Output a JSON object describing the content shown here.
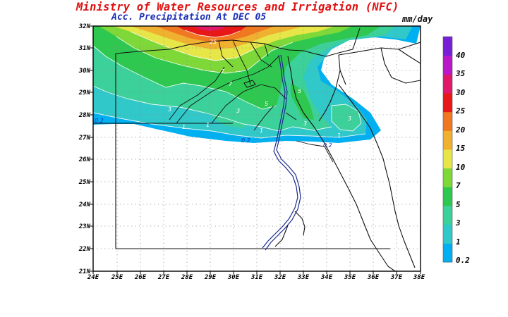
{
  "header": {
    "title": "Ministry of Water Resources and Irrigation (NFC)",
    "subtitle": "Acc. Precipitation  At DEC 05",
    "units": "mm/day"
  },
  "axes": {
    "lat_labels": [
      "21N",
      "22N",
      "23N",
      "24N",
      "25N",
      "26N",
      "27N",
      "28N",
      "29N",
      "30N",
      "31N",
      "32N"
    ],
    "lon_labels": [
      "24E",
      "25E",
      "26E",
      "27E",
      "28E",
      "29E",
      "30E",
      "31E",
      "32E",
      "33E",
      "34E",
      "35E",
      "36E",
      "37E",
      "38E"
    ],
    "lat_range": [
      21,
      32
    ],
    "lon_range": [
      24,
      38
    ]
  },
  "colorbar": {
    "levels": [
      "0.2",
      "1",
      "3",
      "5",
      "7",
      "10",
      "15",
      "20",
      "25",
      "30",
      "35",
      "40"
    ],
    "colors": [
      "#00b0f0",
      "#30c8c8",
      "#3cd09a",
      "#2ec850",
      "#7ed838",
      "#e6e648",
      "#f0b030",
      "#f07820",
      "#e81818",
      "#e0186a",
      "#b818c8",
      "#7820d8"
    ]
  },
  "contour_labels": [
    "0.2",
    "0.2",
    "0.2",
    "1",
    "1",
    "1",
    "1",
    "3",
    "3",
    "3",
    "3",
    "5",
    "5",
    "7",
    "7",
    "25"
  ],
  "colors": {
    "title": "#e01010",
    "subtitle": "#1b2fb5"
  }
}
